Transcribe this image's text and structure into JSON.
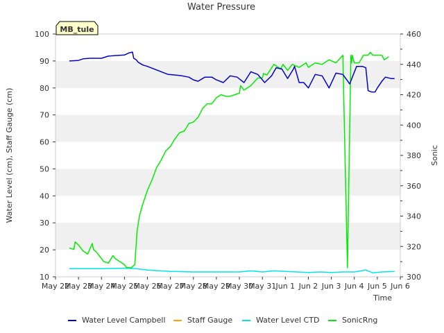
{
  "chart_data": {
    "type": "line",
    "title": "Water Pressure",
    "station_label": "MB_tule",
    "xlabel": "Time",
    "ylabel_left": "Water Level (cm), Staff Gauge (cm)",
    "ylabel_right": "Sonic",
    "x_ticks": [
      "May 22",
      "May 23",
      "May 24",
      "May 25",
      "May 26",
      "May 27",
      "May 28",
      "May 29",
      "May 30",
      "May 31",
      "Jun 1",
      "Jun 2",
      "Jun 3",
      "Jun 4",
      "Jun 5",
      "Jun 6"
    ],
    "y_left_ticks": [
      "10",
      "20",
      "30",
      "40",
      "50",
      "60",
      "70",
      "80",
      "90",
      "100"
    ],
    "y_right_ticks": [
      "300",
      "320",
      "340",
      "360",
      "380",
      "400",
      "420",
      "440",
      "460"
    ],
    "xlim": [
      0,
      15
    ],
    "ylim_left": [
      10,
      100
    ],
    "ylim_right": [
      300,
      460
    ],
    "grid": "horizontal bands",
    "legend_placement": "bottom",
    "colors": {
      "campbell": "#0000cc",
      "staff": "#ffa500",
      "ctd": "#00e5ee",
      "sonic": "#00ee00",
      "band": "#f0f0f0",
      "station_bg": "#ffffcc",
      "station_text": "#8b0000"
    },
    "series": [
      {
        "name": "Water Level Campbell",
        "axis": "left",
        "x": [
          0.6,
          1.0,
          1.2,
          1.5,
          2.0,
          2.3,
          2.6,
          3.0,
          3.2,
          3.35,
          3.4,
          3.5,
          3.6,
          3.8,
          4.0,
          4.3,
          4.6,
          4.9,
          5.2,
          5.5,
          5.8,
          6.0,
          6.2,
          6.5,
          6.8,
          7.0,
          7.3,
          7.6,
          7.9,
          8.2,
          8.5,
          8.8,
          9.1,
          9.4,
          9.6,
          9.85,
          10.1,
          10.35,
          10.4,
          10.6,
          10.8,
          11.0,
          11.3,
          11.6,
          11.9,
          12.2,
          12.5,
          12.8,
          13.1,
          13.35,
          13.5,
          13.6,
          13.75,
          13.9,
          14.0,
          14.2,
          14.35,
          14.6,
          14.75
        ],
        "y": [
          90.0,
          90.2,
          90.8,
          91.0,
          91.0,
          91.8,
          92.0,
          92.2,
          93.0,
          93.3,
          91.0,
          90.5,
          89.5,
          88.5,
          88.0,
          87.0,
          86.0,
          85.0,
          84.8,
          84.5,
          84.0,
          83.0,
          82.5,
          84.0,
          84.0,
          83.0,
          82.0,
          84.5,
          84.0,
          82.0,
          86.0,
          85.0,
          82.0,
          84.5,
          87.5,
          87.0,
          83.5,
          87.0,
          88.0,
          82.0,
          82.0,
          80.0,
          85.0,
          84.5,
          80.0,
          85.5,
          85.0,
          81.5,
          88.0,
          88.0,
          87.5,
          79.0,
          78.5,
          78.5,
          80.0,
          82.5,
          84.0,
          83.5,
          83.5
        ]
      },
      {
        "name": "Staff Gauge",
        "axis": "left",
        "x": [],
        "y": []
      },
      {
        "name": "Water Level CTD",
        "axis": "left",
        "x": [
          0.6,
          1.5,
          2.0,
          3.0,
          3.5,
          4.0,
          5.0,
          6.0,
          7.0,
          8.0,
          8.5,
          9.0,
          9.5,
          10.0,
          10.5,
          11.0,
          11.5,
          12.0,
          12.5,
          13.0,
          13.5,
          13.8,
          14.2,
          14.75
        ],
        "y": [
          13.0,
          13.0,
          13.0,
          13.2,
          13.0,
          12.5,
          12.0,
          11.8,
          11.8,
          11.8,
          12.2,
          11.8,
          12.2,
          12.0,
          11.8,
          11.6,
          11.8,
          11.6,
          11.8,
          11.8,
          12.5,
          11.5,
          11.8,
          12.0
        ]
      },
      {
        "name": "SonicRng",
        "axis": "right",
        "x": [
          0.6,
          0.8,
          0.85,
          1.0,
          1.2,
          1.4,
          1.6,
          1.65,
          1.8,
          2.0,
          2.1,
          2.3,
          2.5,
          2.6,
          2.8,
          3.0,
          3.1,
          3.3,
          3.45,
          3.55,
          3.65,
          3.8,
          4.0,
          4.2,
          4.4,
          4.6,
          4.8,
          5.0,
          5.2,
          5.4,
          5.6,
          5.8,
          6.0,
          6.2,
          6.4,
          6.6,
          6.8,
          7.0,
          7.2,
          7.4,
          7.6,
          7.8,
          8.0,
          8.05,
          8.2,
          8.5,
          8.8,
          9.0,
          9.05,
          9.2,
          9.5,
          9.8,
          9.9,
          10.1,
          10.3,
          10.6,
          10.9,
          11.0,
          11.3,
          11.6,
          11.9,
          12.2,
          12.5,
          12.7,
          12.85,
          12.88,
          12.91,
          13.0,
          13.2,
          13.4,
          13.6,
          13.7,
          13.8,
          14.0,
          14.2,
          14.3,
          14.5
        ],
        "y": [
          319,
          318,
          323,
          321,
          317,
          315,
          322,
          318,
          316,
          312,
          310,
          309,
          314,
          312,
          310,
          308,
          306,
          306,
          308,
          330,
          340,
          348,
          357,
          364,
          372,
          377,
          383,
          386,
          391,
          395,
          396,
          401,
          402,
          405,
          411,
          414,
          414,
          418,
          420,
          419,
          419,
          420,
          421,
          426,
          423,
          426,
          431,
          431,
          434,
          433,
          440,
          437,
          440,
          436,
          440,
          438,
          441,
          438,
          441,
          440,
          443,
          441,
          446,
          306,
          446,
          441,
          446,
          441,
          441,
          446,
          446,
          448,
          446,
          446,
          446,
          443,
          445
        ]
      }
    ]
  }
}
